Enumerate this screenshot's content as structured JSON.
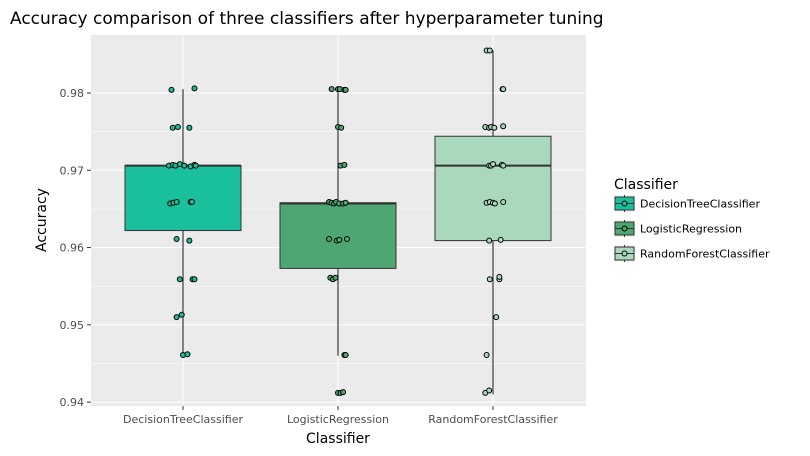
{
  "chart_data": {
    "type": "boxplot",
    "title": "Accuracy comparison of three classifiers after hyperparameter tuning",
    "xlabel": "Classifier",
    "ylabel": "Accuracy",
    "ylim": [
      0.9395,
      0.9875
    ],
    "yticks": [
      0.94,
      0.95,
      0.96,
      0.97,
      0.98
    ],
    "ytick_labels": [
      "0.94",
      "0.95",
      "0.96",
      "0.97",
      "0.98"
    ],
    "grid": true,
    "legend": {
      "title": "Classifier",
      "position": "right"
    },
    "categories": [
      "DecisionTreeClassifier",
      "LogisticRegression",
      "RandomForestClassifier"
    ],
    "series": [
      {
        "name": "DecisionTreeClassifier",
        "color": "#1abf9c",
        "box": {
          "whisker_low": 0.946,
          "q1": 0.9622,
          "median": 0.9706,
          "q3": 0.9706,
          "whisker_high": 0.9805
        },
        "points": [
          {
            "x": -0.18,
            "y": 0.9804
          },
          {
            "x": 0.18,
            "y": 0.9806
          },
          {
            "x": -0.16,
            "y": 0.9755
          },
          {
            "x": -0.08,
            "y": 0.9756
          },
          {
            "x": 0.1,
            "y": 0.9755
          },
          {
            "x": -0.22,
            "y": 0.9706
          },
          {
            "x": -0.16,
            "y": 0.9707
          },
          {
            "x": -0.12,
            "y": 0.9706
          },
          {
            "x": -0.05,
            "y": 0.9708
          },
          {
            "x": 0.02,
            "y": 0.9706
          },
          {
            "x": 0.12,
            "y": 0.9705
          },
          {
            "x": 0.18,
            "y": 0.9707
          },
          {
            "x": 0.2,
            "y": 0.9706
          },
          {
            "x": -0.2,
            "y": 0.9657
          },
          {
            "x": -0.15,
            "y": 0.9658
          },
          {
            "x": -0.1,
            "y": 0.9659
          },
          {
            "x": 0.12,
            "y": 0.9659
          },
          {
            "x": 0.14,
            "y": 0.9659
          },
          {
            "x": -0.1,
            "y": 0.9611
          },
          {
            "x": 0.1,
            "y": 0.9609
          },
          {
            "x": -0.05,
            "y": 0.9559
          },
          {
            "x": 0.15,
            "y": 0.9559
          },
          {
            "x": 0.18,
            "y": 0.9559
          },
          {
            "x": -0.1,
            "y": 0.951
          },
          {
            "x": -0.02,
            "y": 0.9513
          },
          {
            "x": 0.0,
            "y": 0.9461
          },
          {
            "x": 0.07,
            "y": 0.9462
          }
        ]
      },
      {
        "name": "LogisticRegression",
        "color": "#4ea672",
        "box": {
          "whisker_low": 0.946,
          "q1": 0.9573,
          "median": 0.9657,
          "q3": 0.9658,
          "whisker_high": 0.9805
        },
        "points": [
          {
            "x": -0.1,
            "y": 0.9805
          },
          {
            "x": 0.0,
            "y": 0.9805
          },
          {
            "x": 0.03,
            "y": 0.9805
          },
          {
            "x": 0.1,
            "y": 0.9804
          },
          {
            "x": 0.12,
            "y": 0.9804
          },
          {
            "x": 0.0,
            "y": 0.9756
          },
          {
            "x": 0.05,
            "y": 0.9755
          },
          {
            "x": 0.04,
            "y": 0.9706
          },
          {
            "x": 0.1,
            "y": 0.9707
          },
          {
            "x": -0.14,
            "y": 0.9659
          },
          {
            "x": -0.1,
            "y": 0.9658
          },
          {
            "x": -0.06,
            "y": 0.9657
          },
          {
            "x": -0.03,
            "y": 0.9659
          },
          {
            "x": 0.02,
            "y": 0.9657
          },
          {
            "x": 0.08,
            "y": 0.9657
          },
          {
            "x": 0.12,
            "y": 0.9658
          },
          {
            "x": -0.14,
            "y": 0.9611
          },
          {
            "x": -0.02,
            "y": 0.9609
          },
          {
            "x": 0.02,
            "y": 0.961
          },
          {
            "x": 0.14,
            "y": 0.9611
          },
          {
            "x": -0.12,
            "y": 0.9561
          },
          {
            "x": -0.08,
            "y": 0.9559
          },
          {
            "x": -0.04,
            "y": 0.9561
          },
          {
            "x": 0.1,
            "y": 0.9461
          },
          {
            "x": 0.12,
            "y": 0.9461
          },
          {
            "x": 0.0,
            "y": 0.9412
          },
          {
            "x": 0.04,
            "y": 0.9412
          },
          {
            "x": 0.08,
            "y": 0.9413
          }
        ]
      },
      {
        "name": "RandomForestClassifier",
        "color": "#a9d8bc",
        "box": {
          "whisker_low": 0.941,
          "q1": 0.9609,
          "median": 0.9706,
          "q3": 0.9744,
          "whisker_high": 0.9855
        },
        "points": [
          {
            "x": -0.1,
            "y": 0.9855
          },
          {
            "x": -0.05,
            "y": 0.9855
          },
          {
            "x": 0.15,
            "y": 0.9805
          },
          {
            "x": 0.16,
            "y": 0.9805
          },
          {
            "x": -0.12,
            "y": 0.9756
          },
          {
            "x": -0.06,
            "y": 0.9755
          },
          {
            "x": -0.03,
            "y": 0.9756
          },
          {
            "x": 0.02,
            "y": 0.9755
          },
          {
            "x": 0.16,
            "y": 0.9757
          },
          {
            "x": -0.06,
            "y": 0.9706
          },
          {
            "x": -0.03,
            "y": 0.9706
          },
          {
            "x": 0.0,
            "y": 0.9708
          },
          {
            "x": 0.14,
            "y": 0.9707
          },
          {
            "x": 0.16,
            "y": 0.9706
          },
          {
            "x": -0.1,
            "y": 0.9658
          },
          {
            "x": -0.05,
            "y": 0.9659
          },
          {
            "x": 0.0,
            "y": 0.9658
          },
          {
            "x": 0.03,
            "y": 0.9657
          },
          {
            "x": 0.16,
            "y": 0.9659
          },
          {
            "x": -0.06,
            "y": 0.9609
          },
          {
            "x": 0.12,
            "y": 0.961
          },
          {
            "x": -0.05,
            "y": 0.9559
          },
          {
            "x": 0.1,
            "y": 0.9559
          },
          {
            "x": 0.1,
            "y": 0.9562
          },
          {
            "x": 0.05,
            "y": 0.951
          },
          {
            "x": -0.1,
            "y": 0.9461
          },
          {
            "x": -0.12,
            "y": 0.9412
          },
          {
            "x": -0.06,
            "y": 0.9415
          }
        ]
      }
    ]
  }
}
